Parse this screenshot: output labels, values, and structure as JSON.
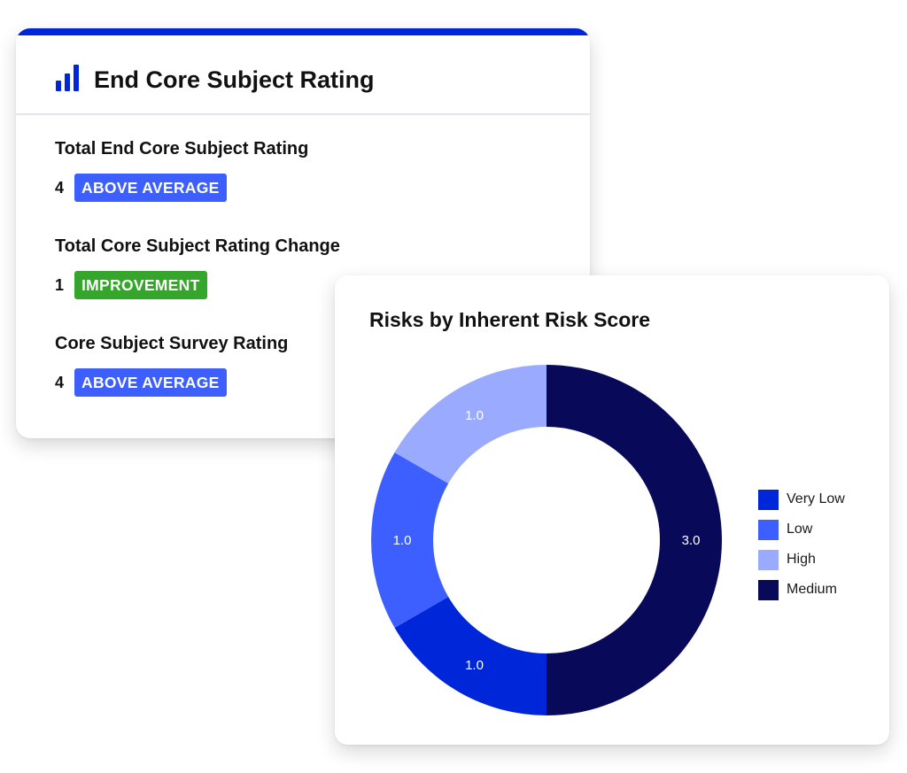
{
  "rating_card": {
    "title": "End Core Subject Rating",
    "icon": "bar-chart-icon",
    "accent_color": "#0026d9",
    "sections": [
      {
        "label": "Total End Core Subject Rating",
        "value": "4",
        "badge": "ABOVE AVERAGE",
        "badge_color": "#3d5fff"
      },
      {
        "label": "Total Core Subject Rating Change",
        "value": "1",
        "badge": "IMPROVEMENT",
        "badge_color": "#36a52b"
      },
      {
        "label": "Core Subject Survey Rating",
        "value": "4",
        "badge": "ABOVE AVERAGE",
        "badge_color": "#3d5fff"
      }
    ]
  },
  "chart_card": {
    "title": "Risks by Inherent Risk Score"
  },
  "chart_data": {
    "type": "pie",
    "title": "Risks by Inherent Risk Score",
    "donut": true,
    "legend_position": "right",
    "slices": [
      {
        "name": "Medium",
        "value": 3.0,
        "label": "3.0",
        "color": "#09095a"
      },
      {
        "name": "Very Low",
        "value": 1.0,
        "label": "1.0",
        "color": "#0026d9"
      },
      {
        "name": "Low",
        "value": 1.0,
        "label": "1.0",
        "color": "#3d5fff"
      },
      {
        "name": "High",
        "value": 1.0,
        "label": "1.0",
        "color": "#99aaff"
      }
    ],
    "legend": [
      {
        "name": "Very Low",
        "color": "#0026d9"
      },
      {
        "name": "Low",
        "color": "#3d5fff"
      },
      {
        "name": "High",
        "color": "#99aaff"
      },
      {
        "name": "Medium",
        "color": "#09095a"
      }
    ]
  }
}
